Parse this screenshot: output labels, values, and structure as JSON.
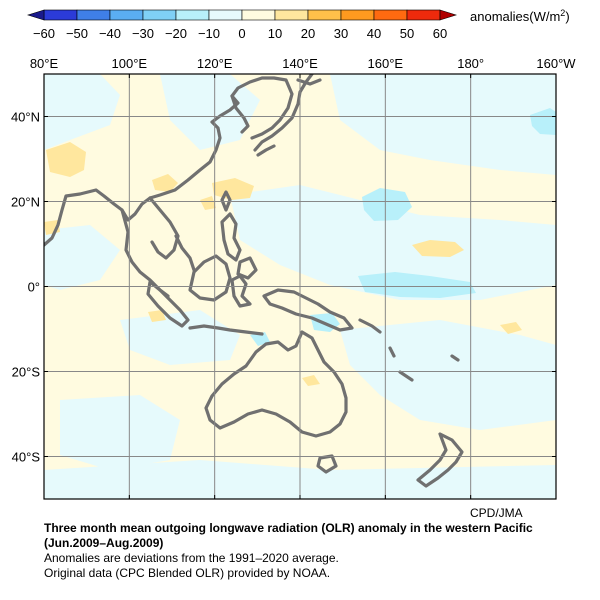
{
  "colorbar": {
    "label": "anomalies(W/m",
    "label_sup": "2",
    "label_end": ")",
    "ticks": [
      "−60",
      "−50",
      "−40",
      "−30",
      "−20",
      "−10",
      "0",
      "10",
      "20",
      "30",
      "40",
      "50",
      "60"
    ],
    "colors": [
      "#2b3bd8",
      "#3f7fe8",
      "#5aaef2",
      "#7fd0f6",
      "#b8f0fa",
      "#e6fafc",
      "#fffbe0",
      "#ffe79e",
      "#ffc04a",
      "#ff9a1f",
      "#ff6a10",
      "#ee2a0c"
    ]
  },
  "map": {
    "lon_labels": [
      "80°E",
      "100°E",
      "120°E",
      "140°E",
      "160°E",
      "180°",
      "160°W"
    ],
    "lat_labels": [
      "40°N",
      "20°N",
      "0°",
      "20°S",
      "40°S"
    ],
    "coastline_color": "#707070",
    "grid_color": "#888888",
    "background_color": "#fffbe0",
    "negative_color": "#e6fafc",
    "strong_negative_color": "#b8f0fa",
    "positive_color": "#ffe79e"
  },
  "credit": "CPD/JMA",
  "caption": {
    "title": "Three month mean outgoing longwave radiation (OLR) anomaly in the western Pacific",
    "period": "(Jun.2009–Aug.2009)",
    "line1": "Anomalies are deviations from the 1991–2020 average.",
    "line2": "Original data (CPC Blended OLR) provided by NOAA."
  }
}
